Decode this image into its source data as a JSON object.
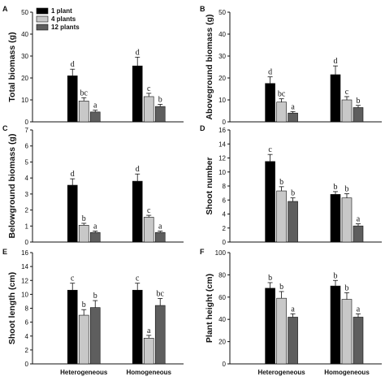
{
  "legend": {
    "entries": [
      {
        "label": "1 plant",
        "color": "#000000"
      },
      {
        "label": "4 plants",
        "color": "#c8c8c8"
      },
      {
        "label": "12 plants",
        "color": "#5e5e5e"
      }
    ]
  },
  "x_categories": [
    "Heterogeneous",
    "Homogeneous"
  ],
  "chart_data": [
    {
      "type": "bar",
      "panel": "A",
      "title": "",
      "xlabel": "",
      "ylabel": "Total biomass (g)",
      "ylim": [
        0,
        50
      ],
      "yticks": [
        0,
        10,
        20,
        30,
        40,
        50
      ],
      "categories": [
        "Heterogeneous",
        "Homogeneous"
      ],
      "series": [
        {
          "name": "1 plant",
          "values": [
            21,
            25.5
          ],
          "err": [
            3,
            4
          ],
          "letters": [
            "d",
            "d"
          ]
        },
        {
          "name": "4 plants",
          "values": [
            9.5,
            11.5
          ],
          "err": [
            1.5,
            1.5
          ],
          "letters": [
            "bc",
            "c"
          ]
        },
        {
          "name": "12 plants",
          "values": [
            4.5,
            7
          ],
          "err": [
            0.8,
            1
          ],
          "letters": [
            "a",
            "b"
          ]
        }
      ]
    },
    {
      "type": "bar",
      "panel": "B",
      "title": "",
      "xlabel": "",
      "ylabel": "Aboveground biomass (g)",
      "ylim": [
        0,
        50
      ],
      "yticks": [
        0,
        10,
        20,
        30,
        40,
        50
      ],
      "categories": [
        "Heterogeneous",
        "Homogeneous"
      ],
      "series": [
        {
          "name": "1 plant",
          "values": [
            17.5,
            21.5
          ],
          "err": [
            3,
            4
          ],
          "letters": [
            "d",
            "d"
          ]
        },
        {
          "name": "4 plants",
          "values": [
            9,
            10
          ],
          "err": [
            1.5,
            1.5
          ],
          "letters": [
            "bc",
            "c"
          ]
        },
        {
          "name": "12 plants",
          "values": [
            4,
            6.5
          ],
          "err": [
            0.7,
            1
          ],
          "letters": [
            "a",
            "b"
          ]
        }
      ]
    },
    {
      "type": "bar",
      "panel": "C",
      "title": "",
      "xlabel": "",
      "ylabel": "Belowground biomass (g)",
      "ylim": [
        0,
        7
      ],
      "yticks": [
        0,
        1,
        2,
        3,
        4,
        5,
        6,
        7
      ],
      "categories": [
        "Heterogeneous",
        "Homogeneous"
      ],
      "series": [
        {
          "name": "1 plant",
          "values": [
            3.55,
            3.8
          ],
          "err": [
            0.4,
            0.45
          ],
          "letters": [
            "d",
            "d"
          ]
        },
        {
          "name": "4 plants",
          "values": [
            1.05,
            1.55
          ],
          "err": [
            0.12,
            0.12
          ],
          "letters": [
            "b",
            "c"
          ]
        },
        {
          "name": "12 plants",
          "values": [
            0.6,
            0.6
          ],
          "err": [
            0.08,
            0.08
          ],
          "letters": [
            "a",
            "a"
          ]
        }
      ]
    },
    {
      "type": "bar",
      "panel": "D",
      "title": "",
      "xlabel": "",
      "ylabel": "Shoot number",
      "ylim": [
        0,
        16
      ],
      "yticks": [
        0,
        2,
        4,
        6,
        8,
        10,
        12,
        14,
        16
      ],
      "categories": [
        "Heterogeneous",
        "Homogeneous"
      ],
      "series": [
        {
          "name": "1 plant",
          "values": [
            11.5,
            6.8
          ],
          "err": [
            1,
            0.4
          ],
          "letters": [
            "c",
            "b"
          ]
        },
        {
          "name": "4 plants",
          "values": [
            7.3,
            6.3
          ],
          "err": [
            0.6,
            0.6
          ],
          "letters": [
            "b",
            "b"
          ]
        },
        {
          "name": "12 plants",
          "values": [
            5.8,
            2.3
          ],
          "err": [
            0.5,
            0.3
          ],
          "letters": [
            "b",
            "a"
          ]
        }
      ]
    },
    {
      "type": "bar",
      "panel": "E",
      "title": "",
      "xlabel": "",
      "ylabel": "Shoot length (cm)",
      "ylim": [
        0,
        16
      ],
      "yticks": [
        0,
        2,
        4,
        6,
        8,
        10,
        12,
        14,
        16
      ],
      "categories": [
        "Heterogeneous",
        "Homogeneous"
      ],
      "series": [
        {
          "name": "1 plant",
          "values": [
            10.6,
            10.6
          ],
          "err": [
            1,
            1
          ],
          "letters": [
            "c",
            "c"
          ]
        },
        {
          "name": "4 plants",
          "values": [
            7,
            3.7
          ],
          "err": [
            0.8,
            0.4
          ],
          "letters": [
            "b",
            "a"
          ]
        },
        {
          "name": "12 plants",
          "values": [
            8.1,
            8.4
          ],
          "err": [
            1,
            1
          ],
          "letters": [
            "b",
            "bc"
          ]
        }
      ]
    },
    {
      "type": "bar",
      "panel": "F",
      "title": "",
      "xlabel": "",
      "ylabel": "Plant height (cm)",
      "ylim": [
        0,
        100
      ],
      "yticks": [
        0,
        20,
        40,
        60,
        80,
        100
      ],
      "categories": [
        "Heterogeneous",
        "Homogeneous"
      ],
      "series": [
        {
          "name": "1 plant",
          "values": [
            68,
            70
          ],
          "err": [
            5,
            5
          ],
          "letters": [
            "b",
            "b"
          ]
        },
        {
          "name": "4 plants",
          "values": [
            59,
            58
          ],
          "err": [
            6,
            6
          ],
          "letters": [
            "b",
            "b"
          ]
        },
        {
          "name": "12 plants",
          "values": [
            42,
            42
          ],
          "err": [
            3,
            3
          ],
          "letters": [
            "a",
            "a"
          ]
        }
      ]
    }
  ]
}
